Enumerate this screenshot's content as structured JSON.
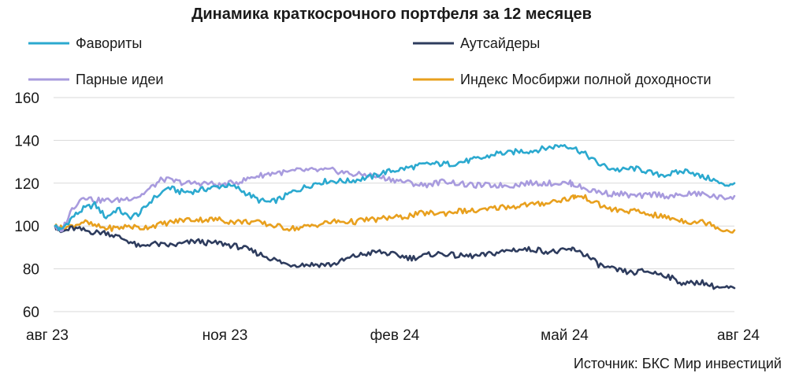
{
  "chart_data": {
    "type": "line",
    "title": "Динамика краткосрочного портфеля за 12 месяцев",
    "source": "Источник: БКС Мир инвестиций",
    "xlabel": "",
    "ylabel": "",
    "x_ticks": [
      "авг 23",
      "ноя 23",
      "фев 24",
      "май 24",
      "авг 24"
    ],
    "y_ticks": [
      60,
      80,
      100,
      120,
      140,
      160
    ],
    "ylim": [
      60,
      160
    ],
    "grid": "horizontal",
    "legend": "top, two columns",
    "series": [
      {
        "name": "Фавориты",
        "color": "#2ba9cf",
        "points": [
          [
            0,
            100
          ],
          [
            0.1,
            98
          ],
          [
            0.3,
            104
          ],
          [
            0.5,
            108
          ],
          [
            0.7,
            110
          ],
          [
            0.9,
            104
          ],
          [
            1.1,
            108
          ],
          [
            1.3,
            104
          ],
          [
            1.5,
            106
          ],
          [
            1.7,
            112
          ],
          [
            2,
            118
          ],
          [
            2.2,
            116
          ],
          [
            2.4,
            116
          ],
          [
            2.6,
            117
          ],
          [
            2.8,
            118
          ],
          [
            3,
            119
          ],
          [
            3.2,
            118
          ],
          [
            3.4,
            115
          ],
          [
            3.6,
            112
          ],
          [
            3.8,
            111
          ],
          [
            4,
            113
          ],
          [
            4.2,
            116
          ],
          [
            4.4,
            118
          ],
          [
            4.6,
            120
          ],
          [
            4.8,
            121
          ],
          [
            5,
            121
          ],
          [
            5.2,
            121
          ],
          [
            5.4,
            122
          ],
          [
            5.6,
            123
          ],
          [
            5.8,
            125
          ],
          [
            6,
            126
          ],
          [
            6.2,
            127
          ],
          [
            6.4,
            128
          ],
          [
            6.6,
            129
          ],
          [
            6.8,
            129
          ],
          [
            7,
            129
          ],
          [
            7.2,
            130
          ],
          [
            7.4,
            131
          ],
          [
            7.6,
            132
          ],
          [
            7.8,
            134
          ],
          [
            8,
            134
          ],
          [
            8.2,
            135
          ],
          [
            8.4,
            135
          ],
          [
            8.6,
            136
          ],
          [
            8.8,
            137
          ],
          [
            9,
            138
          ],
          [
            9.2,
            136
          ],
          [
            9.4,
            133
          ],
          [
            9.6,
            129
          ],
          [
            9.8,
            127
          ],
          [
            10,
            126
          ],
          [
            10.2,
            127
          ],
          [
            10.4,
            126
          ],
          [
            10.6,
            124
          ],
          [
            10.8,
            124
          ],
          [
            11,
            125
          ],
          [
            11.2,
            126
          ],
          [
            11.4,
            123
          ],
          [
            11.6,
            122
          ],
          [
            11.8,
            119
          ],
          [
            12,
            120
          ]
        ]
      },
      {
        "name": "Аутсайдеры",
        "color": "#2e3c5e",
        "points": [
          [
            0,
            100
          ],
          [
            0.1,
            97
          ],
          [
            0.3,
            99
          ],
          [
            0.5,
            98
          ],
          [
            0.7,
            97
          ],
          [
            0.9,
            97
          ],
          [
            1.1,
            95
          ],
          [
            1.3,
            93
          ],
          [
            1.5,
            90
          ],
          [
            1.7,
            92
          ],
          [
            1.9,
            91
          ],
          [
            2.1,
            91
          ],
          [
            2.3,
            92
          ],
          [
            2.5,
            93
          ],
          [
            2.7,
            92
          ],
          [
            2.9,
            92
          ],
          [
            3.1,
            91
          ],
          [
            3.3,
            90
          ],
          [
            3.5,
            88
          ],
          [
            3.7,
            86
          ],
          [
            3.9,
            84
          ],
          [
            4.1,
            82
          ],
          [
            4.3,
            82
          ],
          [
            4.5,
            82
          ],
          [
            4.7,
            82
          ],
          [
            4.9,
            82
          ],
          [
            5.1,
            84
          ],
          [
            5.3,
            86
          ],
          [
            5.5,
            87
          ],
          [
            5.7,
            88
          ],
          [
            5.9,
            87
          ],
          [
            6.1,
            86
          ],
          [
            6.3,
            85
          ],
          [
            6.5,
            86
          ],
          [
            6.7,
            87
          ],
          [
            6.9,
            87
          ],
          [
            7.1,
            86
          ],
          [
            7.3,
            86
          ],
          [
            7.5,
            86
          ],
          [
            7.7,
            87
          ],
          [
            7.9,
            88
          ],
          [
            8.1,
            89
          ],
          [
            8.3,
            89
          ],
          [
            8.5,
            89
          ],
          [
            8.7,
            88
          ],
          [
            8.9,
            88
          ],
          [
            9.1,
            89
          ],
          [
            9.2,
            89
          ],
          [
            9.4,
            86
          ],
          [
            9.6,
            82
          ],
          [
            9.8,
            80
          ],
          [
            10,
            79
          ],
          [
            10.2,
            78
          ],
          [
            10.4,
            79
          ],
          [
            10.6,
            78
          ],
          [
            10.8,
            77
          ],
          [
            11,
            74
          ],
          [
            11.2,
            73
          ],
          [
            11.4,
            74
          ],
          [
            11.6,
            72
          ],
          [
            11.8,
            71
          ],
          [
            12,
            71
          ]
        ]
      },
      {
        "name": "Парные идеи",
        "color": "#a89bde",
        "points": [
          [
            0,
            100
          ],
          [
            0.1,
            97
          ],
          [
            0.3,
            108
          ],
          [
            0.5,
            114
          ],
          [
            0.7,
            112
          ],
          [
            0.9,
            112
          ],
          [
            1.1,
            112
          ],
          [
            1.3,
            113
          ],
          [
            1.5,
            114
          ],
          [
            1.7,
            118
          ],
          [
            1.9,
            122
          ],
          [
            2.1,
            121
          ],
          [
            2.3,
            120
          ],
          [
            2.5,
            120
          ],
          [
            2.7,
            120
          ],
          [
            2.9,
            119
          ],
          [
            3.1,
            120
          ],
          [
            3.3,
            121
          ],
          [
            3.5,
            123
          ],
          [
            3.7,
            124
          ],
          [
            3.9,
            125
          ],
          [
            4.1,
            125
          ],
          [
            4.3,
            126
          ],
          [
            4.5,
            126
          ],
          [
            4.7,
            126
          ],
          [
            4.9,
            126
          ],
          [
            5.1,
            125
          ],
          [
            5.3,
            124
          ],
          [
            5.5,
            124
          ],
          [
            5.7,
            123
          ],
          [
            5.9,
            122
          ],
          [
            6.1,
            121
          ],
          [
            6.3,
            120
          ],
          [
            6.5,
            119
          ],
          [
            6.7,
            120
          ],
          [
            6.9,
            121
          ],
          [
            7.1,
            120
          ],
          [
            7.3,
            119
          ],
          [
            7.5,
            119
          ],
          [
            7.7,
            119
          ],
          [
            7.9,
            119
          ],
          [
            8.1,
            119
          ],
          [
            8.3,
            120
          ],
          [
            8.5,
            120
          ],
          [
            8.7,
            120
          ],
          [
            8.9,
            120
          ],
          [
            9.1,
            120
          ],
          [
            9.2,
            119
          ],
          [
            9.4,
            117
          ],
          [
            9.6,
            116
          ],
          [
            9.8,
            115
          ],
          [
            10,
            115
          ],
          [
            10.2,
            114
          ],
          [
            10.4,
            114
          ],
          [
            10.6,
            115
          ],
          [
            10.8,
            114
          ],
          [
            11,
            114
          ],
          [
            11.2,
            115
          ],
          [
            11.4,
            115
          ],
          [
            11.6,
            114
          ],
          [
            11.8,
            113
          ],
          [
            12,
            114
          ]
        ]
      },
      {
        "name": "Индекс Мосбиржи полной доходности",
        "color": "#e8a01e",
        "points": [
          [
            0,
            100
          ],
          [
            0.1,
            99
          ],
          [
            0.3,
            100
          ],
          [
            0.5,
            102
          ],
          [
            0.7,
            100
          ],
          [
            0.9,
            99
          ],
          [
            1.1,
            99
          ],
          [
            1.3,
            100
          ],
          [
            1.5,
            99
          ],
          [
            1.7,
            100
          ],
          [
            1.9,
            101
          ],
          [
            2.1,
            102
          ],
          [
            2.3,
            103
          ],
          [
            2.5,
            103
          ],
          [
            2.7,
            103
          ],
          [
            2.9,
            103
          ],
          [
            3.1,
            102
          ],
          [
            3.3,
            102
          ],
          [
            3.5,
            102
          ],
          [
            3.7,
            101
          ],
          [
            3.9,
            100
          ],
          [
            4.1,
            99
          ],
          [
            4.3,
            99
          ],
          [
            4.5,
            100
          ],
          [
            4.7,
            101
          ],
          [
            4.9,
            102
          ],
          [
            5.1,
            102
          ],
          [
            5.3,
            102
          ],
          [
            5.5,
            103
          ],
          [
            5.7,
            103
          ],
          [
            5.9,
            104
          ],
          [
            6.1,
            104
          ],
          [
            6.3,
            105
          ],
          [
            6.5,
            106
          ],
          [
            6.7,
            106
          ],
          [
            6.9,
            106
          ],
          [
            7.1,
            107
          ],
          [
            7.3,
            107
          ],
          [
            7.5,
            107
          ],
          [
            7.7,
            108
          ],
          [
            7.9,
            109
          ],
          [
            8.1,
            109
          ],
          [
            8.3,
            110
          ],
          [
            8.5,
            110
          ],
          [
            8.7,
            111
          ],
          [
            8.9,
            112
          ],
          [
            9.1,
            113
          ],
          [
            9.2,
            114
          ],
          [
            9.4,
            113
          ],
          [
            9.6,
            110
          ],
          [
            9.8,
            108
          ],
          [
            10,
            107
          ],
          [
            10.2,
            107
          ],
          [
            10.4,
            106
          ],
          [
            10.6,
            105
          ],
          [
            10.8,
            104
          ],
          [
            11,
            103
          ],
          [
            11.2,
            102
          ],
          [
            11.4,
            102
          ],
          [
            11.6,
            101
          ],
          [
            11.8,
            98
          ],
          [
            12,
            98
          ]
        ]
      }
    ]
  }
}
